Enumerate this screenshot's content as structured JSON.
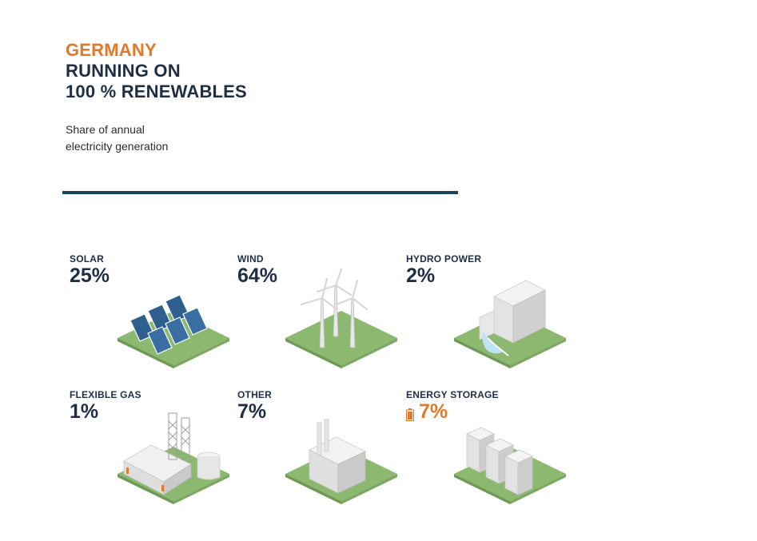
{
  "header": {
    "country": "GERMANY",
    "line1": "RUNNING ON",
    "line2": "100 % RENEWABLES"
  },
  "subtitle": {
    "line1": "Share of annual",
    "line2": "electricity generation"
  },
  "colors": {
    "accent": "#e07a2b",
    "navy": "#1f2d45",
    "rule": "#17445e",
    "grass": "#8db870"
  },
  "chart_data": {
    "type": "table",
    "categories": [
      "SOLAR",
      "WIND",
      "HYDRO POWER",
      "FLEXIBLE GAS",
      "OTHER",
      "ENERGY STORAGE"
    ],
    "values": [
      25,
      64,
      2,
      1,
      7,
      7
    ],
    "unit": "%",
    "value_labels": [
      "25%",
      "64%",
      "2%",
      "1%",
      "7%",
      "7%"
    ],
    "icons": [
      "solar-panels-icon",
      "wind-turbines-icon",
      "hydro-dam-icon",
      "gas-plant-icon",
      "industrial-building-icon",
      "storage-units-icon"
    ]
  }
}
